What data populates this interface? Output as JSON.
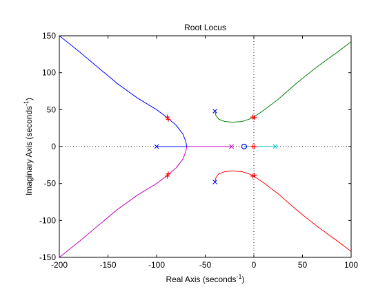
{
  "chart_data": {
    "type": "line",
    "title": "Root Locus",
    "xlabel": {
      "text": "Real Axis (seconds",
      "sup": "-1",
      "end": ")"
    },
    "ylabel": {
      "text": "Imaginary Axis (seconds",
      "sup": "-1",
      "end": ")"
    },
    "xlim": [
      -200,
      100
    ],
    "ylim": [
      -150,
      150
    ],
    "xticks": [
      -200,
      -150,
      -100,
      -50,
      0,
      50,
      100
    ],
    "yticks": [
      -150,
      -100,
      -50,
      0,
      50,
      100,
      150
    ],
    "xtick_labels": [
      "-200",
      "-150",
      "-100",
      "-50",
      "0",
      "50",
      "100"
    ],
    "ytick_labels": [
      "-150",
      "-100",
      "-50",
      "0",
      "50",
      "100",
      "150"
    ],
    "grid": false,
    "zero_lines": "dotted",
    "series": [
      {
        "color": "#0000ff",
        "x": [
          -200,
          -180,
          -160,
          -140,
          -120,
          -100,
          -89,
          -80,
          -73,
          -70,
          -69
        ],
        "y": [
          150,
          129,
          107,
          85,
          66,
          50,
          39,
          29,
          17,
          7,
          0
        ]
      },
      {
        "color": "#0000ff",
        "x": [
          -100,
          -69
        ],
        "y": [
          0,
          0
        ]
      },
      {
        "color": "#bf00bf",
        "x": [
          -200,
          -180,
          -160,
          -140,
          -120,
          -100,
          -89,
          -80,
          -73,
          -70,
          -69
        ],
        "y": [
          -150,
          -129,
          -107,
          -85,
          -66,
          -50,
          -39,
          -29,
          -17,
          -7,
          0
        ]
      },
      {
        "color": "#bf00bf",
        "x": [
          -69,
          -23
        ],
        "y": [
          0,
          0
        ]
      },
      {
        "color": "#008000",
        "x": [
          -40,
          -39,
          -36,
          -30,
          -22,
          -12,
          -5,
          0,
          10,
          25,
          45,
          65,
          85,
          100
        ],
        "y": [
          48,
          42,
          37,
          34,
          33,
          34,
          37,
          40,
          49,
          64,
          87,
          108,
          127,
          142
        ]
      },
      {
        "color": "#ff0000",
        "x": [
          -40,
          -39,
          -36,
          -30,
          -22,
          -12,
          -5,
          0,
          10,
          25,
          45,
          65,
          85,
          100
        ],
        "y": [
          -48,
          -42,
          -37,
          -34,
          -33,
          -34,
          -37,
          -40,
          -49,
          -64,
          -87,
          -108,
          -127,
          -142
        ]
      },
      {
        "color": "#00bfbf",
        "x": [
          -10,
          0,
          22
        ],
        "y": [
          0,
          0,
          0
        ]
      }
    ],
    "poles": [
      {
        "x": -100,
        "y": 0,
        "color": "#0000ff"
      },
      {
        "x": -23,
        "y": 0,
        "color": "#bf00bf"
      },
      {
        "x": -40,
        "y": 48,
        "color": "#0000ff"
      },
      {
        "x": -40,
        "y": -48,
        "color": "#0000ff"
      },
      {
        "x": 22,
        "y": 0,
        "color": "#00bfbf"
      }
    ],
    "zeros": [
      {
        "x": -10,
        "y": 0,
        "color": "#0000ff"
      }
    ],
    "closed_loop_markers": [
      {
        "x": -89,
        "y": 40
      },
      {
        "x": -88,
        "y": 37
      },
      {
        "x": -89,
        "y": -40
      },
      {
        "x": -88,
        "y": -37
      },
      {
        "x": -1,
        "y": 40
      },
      {
        "x": 1,
        "y": 39
      },
      {
        "x": -1,
        "y": -40
      },
      {
        "x": 1,
        "y": -39
      },
      {
        "x": -1,
        "y": 0
      },
      {
        "x": 1,
        "y": 0
      }
    ],
    "marker_color": "#ff0000"
  }
}
